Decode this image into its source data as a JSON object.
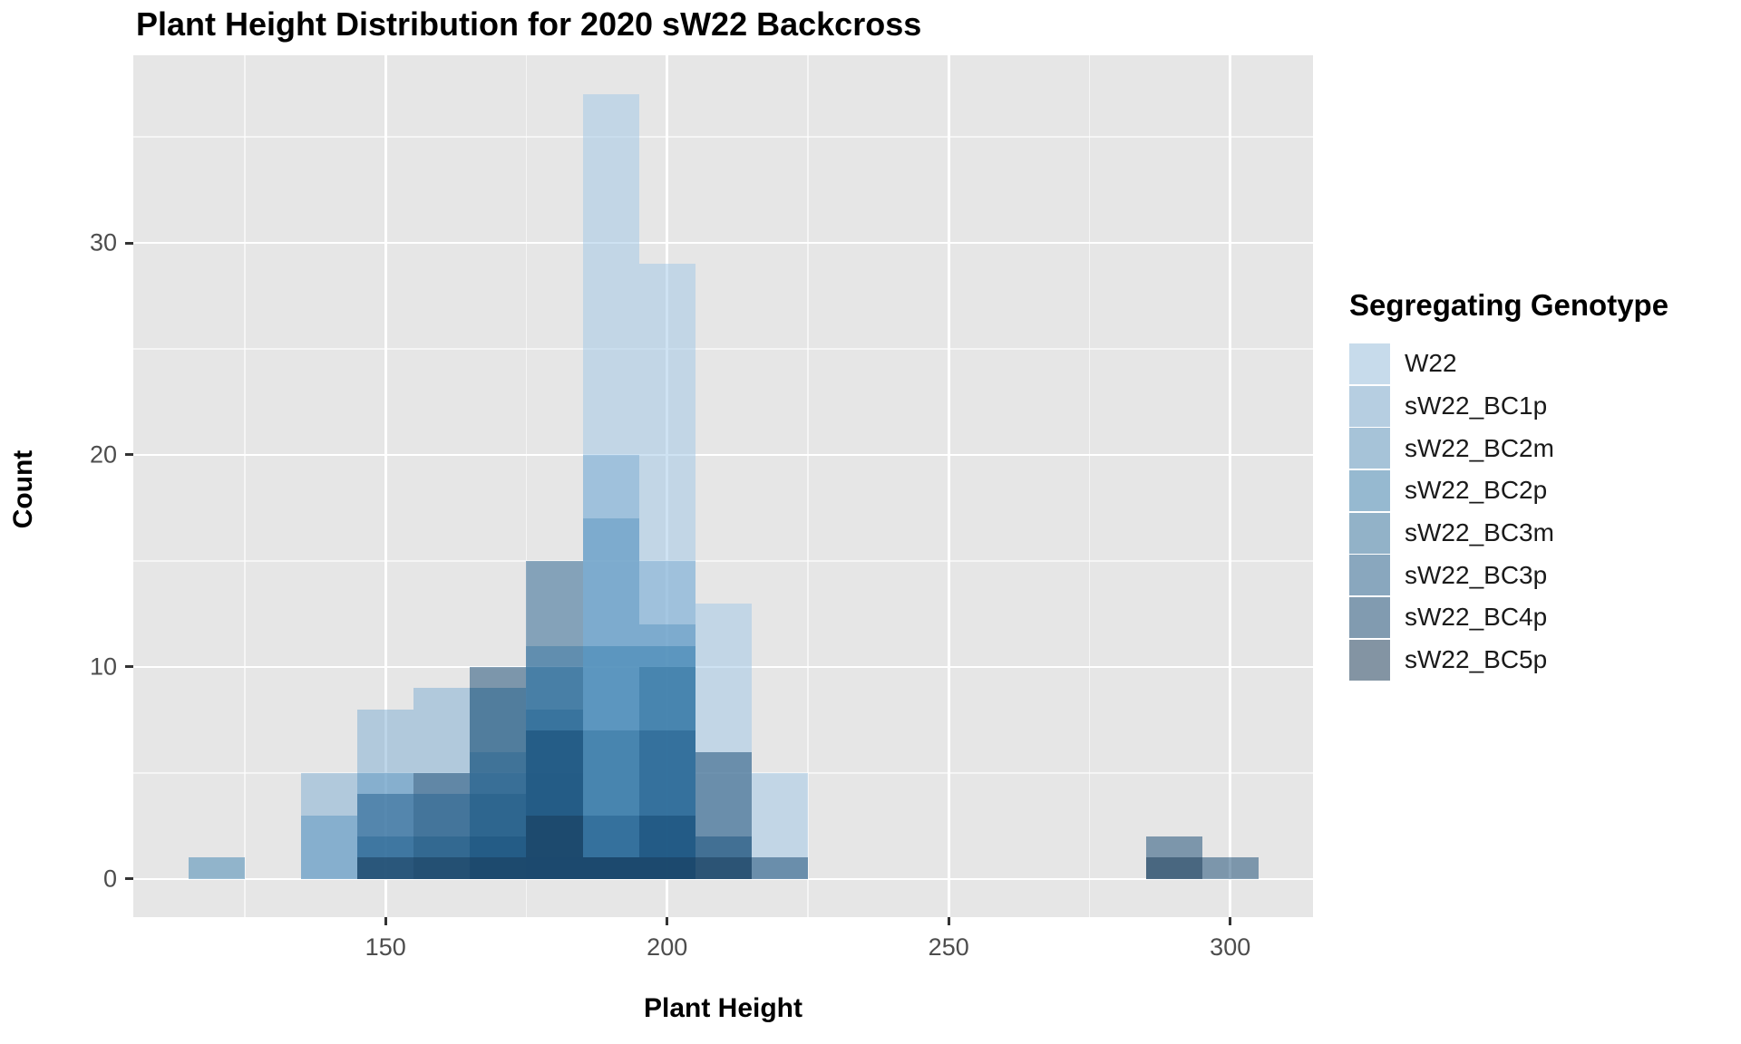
{
  "title": "Plant Height Distribution for 2020 sW22 Backcross",
  "axes": {
    "x_title": "Plant Height",
    "y_title": "Count",
    "x_major_ticks": [
      150,
      200,
      250,
      300
    ],
    "x_minor_ticks": [
      125,
      175,
      225,
      275
    ],
    "y_major_ticks": [
      0,
      10,
      20,
      30
    ],
    "y_minor_ticks": [
      5,
      15,
      25,
      35
    ],
    "x_domain": [
      105.2,
      314.7
    ],
    "y_domain": [
      -1.8,
      38.85
    ]
  },
  "legend": {
    "title": "Segregating Genotype",
    "entries": [
      {
        "label": "W22",
        "color": "#9ec6e6"
      },
      {
        "label": "sW22_BC1p",
        "color": "#7cacd2"
      },
      {
        "label": "sW22_BC2m",
        "color": "#5c96c0"
      },
      {
        "label": "sW22_BC2p",
        "color": "#3c82b0"
      },
      {
        "label": "sW22_BC3m",
        "color": "#3474a0"
      },
      {
        "label": "sW22_BC3p",
        "color": "#225e8c"
      },
      {
        "label": "sW22_BC4p",
        "color": "#124670"
      },
      {
        "label": "sW22_BC5p",
        "color": "#163856"
      }
    ]
  },
  "chart_data": {
    "type": "bar",
    "subtype": "overlaid-histogram",
    "position": "identity",
    "fill_alpha": 0.5,
    "bin_width": 10,
    "bins": [
      [
        115,
        125
      ],
      [
        125,
        135
      ],
      [
        135,
        145
      ],
      [
        145,
        155
      ],
      [
        155,
        165
      ],
      [
        165,
        175
      ],
      [
        175,
        185
      ],
      [
        185,
        195
      ],
      [
        195,
        205
      ],
      [
        205,
        215
      ],
      [
        215,
        225
      ],
      [
        285,
        295
      ],
      [
        295,
        305
      ]
    ],
    "series": [
      {
        "name": "W22",
        "color": "#9ec6e6",
        "counts": [
          0,
          0,
          0,
          0,
          0,
          0,
          1,
          37,
          29,
          13,
          5,
          0,
          0
        ]
      },
      {
        "name": "sW22_BC1p",
        "color": "#7cacd2",
        "counts": [
          0,
          0,
          5,
          8,
          9,
          5,
          5,
          20,
          15,
          0,
          0,
          0,
          0
        ]
      },
      {
        "name": "sW22_BC2m",
        "color": "#5c96c0",
        "counts": [
          0,
          0,
          3,
          5,
          0,
          6,
          11,
          17,
          12,
          0,
          0,
          0,
          0
        ]
      },
      {
        "name": "sW22_BC2p",
        "color": "#3c82b0",
        "counts": [
          1,
          0,
          0,
          0,
          4,
          9,
          10,
          11,
          11,
          0,
          0,
          0,
          0
        ]
      },
      {
        "name": "sW22_BC3m",
        "color": "#3474a0",
        "counts": [
          0,
          0,
          0,
          2,
          2,
          4,
          8,
          7,
          10,
          0,
          0,
          0,
          0
        ]
      },
      {
        "name": "sW22_BC3p",
        "color": "#225e8c",
        "counts": [
          0,
          0,
          0,
          4,
          0,
          2,
          15,
          3,
          7,
          2,
          0,
          0,
          0
        ]
      },
      {
        "name": "sW22_BC4p",
        "color": "#124670",
        "counts": [
          0,
          0,
          0,
          0,
          5,
          10,
          7,
          1,
          3,
          6,
          1,
          2,
          1
        ]
      },
      {
        "name": "sW22_BC5p",
        "color": "#163856",
        "counts": [
          0,
          0,
          0,
          1,
          1,
          1,
          3,
          1,
          1,
          1,
          0,
          1,
          0
        ]
      }
    ],
    "title": "Plant Height Distribution for 2020 sW22 Backcross",
    "xlabel": "Plant Height",
    "ylabel": "Count",
    "grid": true,
    "legend_position": "right",
    "panel_background": "#e6e6e6"
  }
}
